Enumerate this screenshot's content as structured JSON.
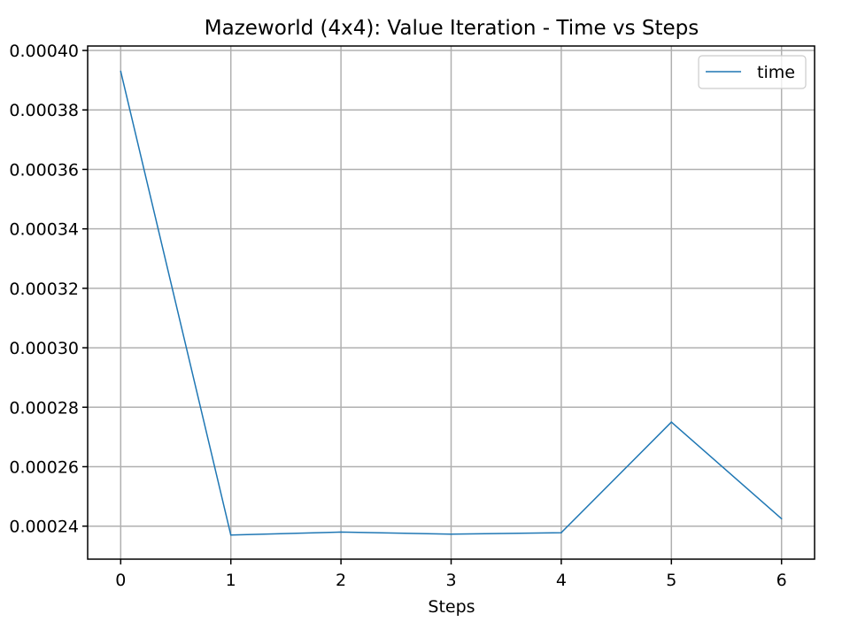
{
  "chart_data": {
    "type": "line",
    "title": "Mazeworld (4x4): Value Iteration - Time vs Steps",
    "xlabel": "Steps",
    "ylabel": "",
    "x": [
      0,
      1,
      2,
      3,
      4,
      5,
      6
    ],
    "series": [
      {
        "name": "time",
        "color": "#1f77b4",
        "values": [
          0.000393,
          0.000237,
          0.000238,
          0.0002373,
          0.0002378,
          0.000275,
          0.0002425
        ]
      }
    ],
    "xlim": [
      -0.3,
      6.3
    ],
    "ylim": [
      0.0002289,
      0.0004015
    ],
    "xticks": [
      0,
      1,
      2,
      3,
      4,
      5,
      6
    ],
    "xtick_labels": [
      "0",
      "1",
      "2",
      "3",
      "4",
      "5",
      "6"
    ],
    "yticks": [
      0.00024,
      0.00026,
      0.00028,
      0.0003,
      0.00032,
      0.00034,
      0.00036,
      0.00038,
      0.0004
    ],
    "ytick_labels": [
      "0.00024",
      "0.00026",
      "0.00028",
      "0.00030",
      "0.00032",
      "0.00034",
      "0.00036",
      "0.00038",
      "0.00040"
    ],
    "grid": true,
    "legend_position": "top-right",
    "grid_color": "#b0b0b0",
    "axis_color": "#000000"
  }
}
